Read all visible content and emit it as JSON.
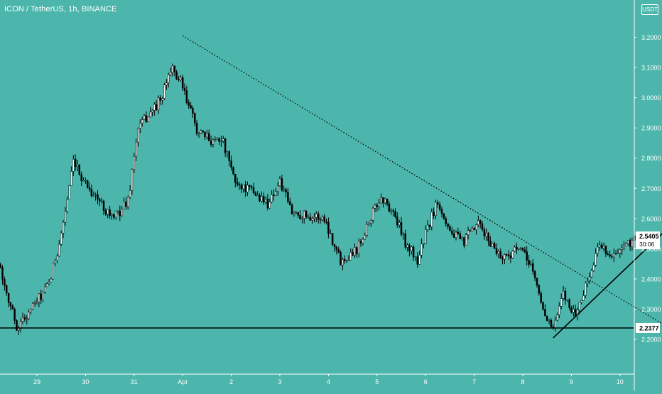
{
  "header": {
    "symbol_title": "ICON / TetherUS, 1h, BINANCE",
    "currency_button": "USDT"
  },
  "colors": {
    "background": "#4db6ac",
    "candle_up": "#ffffff",
    "candle_down": "#000000",
    "trendline": "#000000",
    "axis_text": "#ffffff",
    "price_tag_bg": "#ffffff",
    "price_tag_text": "#000000"
  },
  "chart_data": {
    "type": "candlestick",
    "title": "",
    "y_axis": {
      "ticks": [
        "2.2000",
        "2.3000",
        "2.4000",
        "2.5000",
        "2.6000",
        "2.7000",
        "2.8000",
        "2.9000",
        "3.0000",
        "3.1000",
        "3.2000"
      ],
      "ylim": [
        2.17,
        3.23
      ]
    },
    "x_axis": {
      "ticks": [
        "29",
        "30",
        "31",
        "Apr",
        "2",
        "3",
        "4",
        "5",
        "6",
        "7",
        "8",
        "9",
        "10"
      ]
    },
    "price_anchors": [
      {
        "date": "Mar 28 00:00",
        "price": 2.58
      },
      {
        "date": "Mar 28 09:00",
        "price": 2.36
      },
      {
        "date": "Mar 28 14:00",
        "price": 2.24
      },
      {
        "date": "Mar 28 19:00",
        "price": 2.28
      },
      {
        "date": "Mar 29 06:00",
        "price": 2.38
      },
      {
        "date": "Mar 29 12:00",
        "price": 2.55
      },
      {
        "date": "Mar 29 18:00",
        "price": 2.78
      },
      {
        "date": "Mar 30 04:00",
        "price": 2.68
      },
      {
        "date": "Mar 30 14:00",
        "price": 2.6
      },
      {
        "date": "Mar 30 21:00",
        "price": 2.66
      },
      {
        "date": "Mar 31 02:00",
        "price": 2.9
      },
      {
        "date": "Mar 31 08:00",
        "price": 2.95
      },
      {
        "date": "Mar 31 14:00",
        "price": 3.0
      },
      {
        "date": "Mar 31 18:00",
        "price": 3.1
      },
      {
        "date": "Mar 31 23:00",
        "price": 3.05
      },
      {
        "date": "Apr 1 03:00",
        "price": 2.97
      },
      {
        "date": "Apr 1 08:00",
        "price": 2.88
      },
      {
        "date": "Apr 1 14:00",
        "price": 2.86
      },
      {
        "date": "Apr 1 19:00",
        "price": 2.87
      },
      {
        "date": "Apr 2 02:00",
        "price": 2.72
      },
      {
        "date": "Apr 2 10:00",
        "price": 2.69
      },
      {
        "date": "Apr 2 18:00",
        "price": 2.65
      },
      {
        "date": "Apr 3 00:00",
        "price": 2.72
      },
      {
        "date": "Apr 3 06:00",
        "price": 2.62
      },
      {
        "date": "Apr 3 14:00",
        "price": 2.61
      },
      {
        "date": "Apr 3 22:00",
        "price": 2.6
      },
      {
        "date": "Apr 4 06:00",
        "price": 2.46
      },
      {
        "date": "Apr 4 14:00",
        "price": 2.5
      },
      {
        "date": "Apr 4 22:00",
        "price": 2.62
      },
      {
        "date": "Apr 5 02:00",
        "price": 2.67
      },
      {
        "date": "Apr 5 08:00",
        "price": 2.62
      },
      {
        "date": "Apr 5 14:00",
        "price": 2.52
      },
      {
        "date": "Apr 5 20:00",
        "price": 2.46
      },
      {
        "date": "Apr 6 00:00",
        "price": 2.55
      },
      {
        "date": "Apr 6 06:00",
        "price": 2.66
      },
      {
        "date": "Apr 6 12:00",
        "price": 2.56
      },
      {
        "date": "Apr 6 18:00",
        "price": 2.52
      },
      {
        "date": "Apr 7 02:00",
        "price": 2.58
      },
      {
        "date": "Apr 7 08:00",
        "price": 2.52
      },
      {
        "date": "Apr 7 14:00",
        "price": 2.47
      },
      {
        "date": "Apr 7 22:00",
        "price": 2.5
      },
      {
        "date": "Apr 8 04:00",
        "price": 2.45
      },
      {
        "date": "Apr 8 10:00",
        "price": 2.3
      },
      {
        "date": "Apr 8 15:00",
        "price": 2.23
      },
      {
        "date": "Apr 8 20:00",
        "price": 2.35
      },
      {
        "date": "Apr 9 02:00",
        "price": 2.28
      },
      {
        "date": "Apr 9 10:00",
        "price": 2.43
      },
      {
        "date": "Apr 9 14:00",
        "price": 2.52
      },
      {
        "date": "Apr 9 20:00",
        "price": 2.47
      },
      {
        "date": "Apr 10 02:00",
        "price": 2.5
      },
      {
        "date": "Apr 10 08:00",
        "price": 2.54
      },
      {
        "date": "Apr 10 12:00",
        "price": 2.51
      },
      {
        "date": "Apr 10 16:00",
        "price": 2.5405
      }
    ],
    "last_price": {
      "value": "2.5405",
      "countdown": "30:06"
    },
    "horizontal_line": {
      "value": "2.2377"
    },
    "drawings": {
      "dotted_trendline": [
        {
          "date": "Apr 1 00:00",
          "price": 3.205
        },
        {
          "date": "Apr 11 01:00",
          "price": 2.235
        }
      ],
      "support_trendline": [
        {
          "date": "Apr 8 15:00",
          "price": 2.205
        },
        {
          "date": "Apr 11 00:00",
          "price": 2.57
        }
      ]
    }
  }
}
